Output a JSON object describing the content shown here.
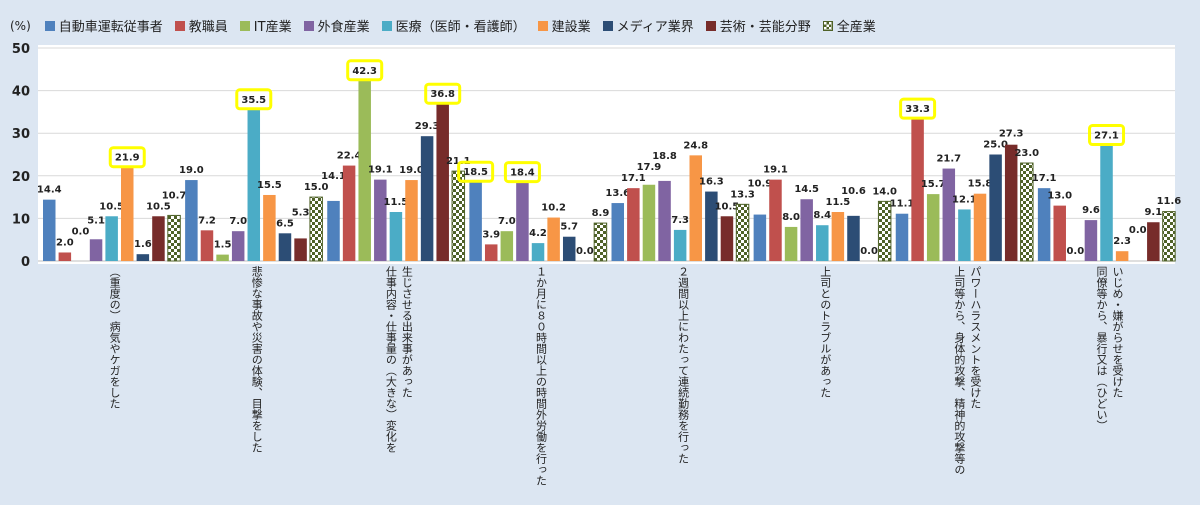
{
  "chart_data": {
    "type": "bar",
    "ylabel": "(%)",
    "ylim": [
      0,
      50
    ],
    "yticks": [
      0,
      10,
      20,
      30,
      40,
      50
    ],
    "grid": true,
    "legend_position": "top",
    "categories": [
      "（重度の）病気やケガをした",
      "悲惨な事故や災害の体験、目撃をした",
      "仕事内容・仕事量の（大きな）変化を\n生じさせる出来事があった",
      "１か月に８０時間以上の時間外労働を行った",
      "２週間以上にわたって連続勤務を行った",
      "上司とのトラブルがあった",
      "上司等から、身体的攻撃、精神的攻撃等の\nパワーハラスメントを受けた",
      "同僚等から、暴行又は（ひどい）\nいじめ・嫌がらせを受けた"
    ],
    "series": [
      {
        "name": "自動車運転従事者",
        "color": "#4f81bd",
        "values": [
          14.4,
          19.0,
          14.1,
          18.5,
          13.6,
          10.9,
          11.1,
          17.1
        ]
      },
      {
        "name": "教職員",
        "color": "#c0504d",
        "values": [
          2.0,
          7.2,
          22.4,
          3.9,
          17.1,
          19.1,
          33.3,
          13.0
        ]
      },
      {
        "name": "IT産業",
        "color": "#9bbb59",
        "values": [
          0.0,
          1.5,
          42.3,
          7.0,
          17.9,
          8.0,
          15.7,
          0.0
        ]
      },
      {
        "name": "外食産業",
        "color": "#8064a2",
        "values": [
          5.1,
          7.0,
          19.1,
          18.4,
          18.8,
          14.5,
          21.7,
          9.6
        ]
      },
      {
        "name": "医療（医師・看護師）",
        "color": "#4bacc6",
        "values": [
          10.5,
          35.5,
          11.5,
          4.2,
          7.3,
          8.4,
          12.1,
          27.1
        ]
      },
      {
        "name": "建設業",
        "color": "#f79646",
        "values": [
          21.9,
          15.5,
          19.0,
          10.2,
          24.8,
          11.5,
          15.8,
          2.3
        ]
      },
      {
        "name": "メディア業界",
        "color": "#2c4d75",
        "values": [
          1.6,
          6.5,
          29.3,
          5.7,
          16.3,
          10.6,
          25.0,
          0.0
        ]
      },
      {
        "name": "芸術・芸能分野",
        "color": "#772c2a",
        "values": [
          10.5,
          5.3,
          36.8,
          0.0,
          10.5,
          0.0,
          27.3,
          9.1
        ]
      },
      {
        "name": "全産業",
        "color": "pattern",
        "values": [
          10.7,
          15.0,
          21.1,
          8.9,
          13.3,
          14.0,
          23.0,
          11.6
        ]
      }
    ],
    "highlighted": [
      [
        0,
        5
      ],
      [
        1,
        4
      ],
      [
        2,
        2
      ],
      [
        2,
        7
      ],
      [
        3,
        0
      ],
      [
        3,
        3
      ],
      [
        6,
        1
      ],
      [
        7,
        4
      ]
    ],
    "highlight_color": "#ffff00",
    "pattern_color": "#4f6228"
  }
}
